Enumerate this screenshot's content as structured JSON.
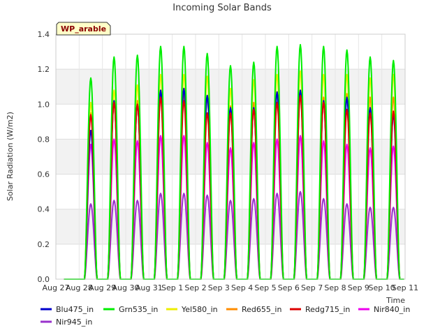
{
  "chart_data": {
    "type": "line",
    "title": "Incoming Solar Bands",
    "xlabel": "Time",
    "ylabel": "Solar Radiation (W/m2)",
    "site_label": "WP_arable",
    "ylim": [
      0,
      1.4
    ],
    "yticks": [
      "0.0",
      "0.2",
      "0.4",
      "0.6",
      "0.8",
      "1.0",
      "1.2",
      "1.4"
    ],
    "xticks": [
      "Aug 27",
      "Aug 28",
      "Aug 29",
      "Aug 30",
      "Aug 31",
      "Sep 1",
      "Sep 2",
      "Sep 3",
      "Sep 4",
      "Sep 5",
      "Sep 6",
      "Sep 7",
      "Sep 8",
      "Sep 9",
      "Sep 10",
      "Sep 11"
    ],
    "grid": true,
    "days": [
      "Aug 28",
      "Aug 29",
      "Aug 30",
      "Aug 31",
      "Sep 1",
      "Sep 2",
      "Sep 3",
      "Sep 4",
      "Sep 5",
      "Sep 6",
      "Sep 7",
      "Sep 8",
      "Sep 9",
      "Sep 10"
    ],
    "series": [
      {
        "name": "Blu475_in",
        "color": "#0000cc",
        "daily_peaks": [
          0.85,
          1.02,
          1.0,
          1.08,
          1.09,
          1.05,
          0.98,
          0.98,
          1.07,
          1.08,
          1.02,
          1.04,
          0.98,
          0.94
        ]
      },
      {
        "name": "Grn535_in",
        "color": "#00ee00",
        "daily_peaks": [
          1.15,
          1.27,
          1.28,
          1.33,
          1.33,
          1.29,
          1.22,
          1.24,
          1.33,
          1.34,
          1.33,
          1.31,
          1.27,
          1.25
        ]
      },
      {
        "name": "Yel580_in",
        "color": "#eeee00",
        "daily_peaks": [
          1.01,
          1.08,
          1.11,
          1.17,
          1.17,
          1.16,
          1.09,
          1.14,
          1.17,
          1.19,
          1.17,
          1.17,
          1.15,
          1.17
        ]
      },
      {
        "name": "Red655_in",
        "color": "#ff8c00",
        "daily_peaks": [
          0.95,
          1.02,
          1.02,
          1.06,
          1.06,
          1.04,
          0.99,
          1.01,
          1.07,
          1.07,
          1.04,
          1.06,
          1.04,
          1.04
        ]
      },
      {
        "name": "Redg715_in",
        "color": "#dd0000",
        "daily_peaks": [
          0.94,
          1.01,
          1.0,
          1.04,
          1.02,
          0.95,
          0.95,
          0.97,
          1.01,
          1.05,
          1.01,
          0.97,
          0.95,
          0.96
        ]
      },
      {
        "name": "Nir840_in",
        "color": "#ee00ee",
        "daily_peaks": [
          0.77,
          0.8,
          0.79,
          0.82,
          0.82,
          0.78,
          0.75,
          0.78,
          0.8,
          0.82,
          0.79,
          0.77,
          0.75,
          0.76
        ]
      },
      {
        "name": "Nir945_in",
        "color": "#9932cc",
        "daily_peaks": [
          0.43,
          0.45,
          0.45,
          0.49,
          0.49,
          0.48,
          0.45,
          0.46,
          0.49,
          0.5,
          0.46,
          0.43,
          0.41,
          0.41
        ]
      }
    ]
  }
}
